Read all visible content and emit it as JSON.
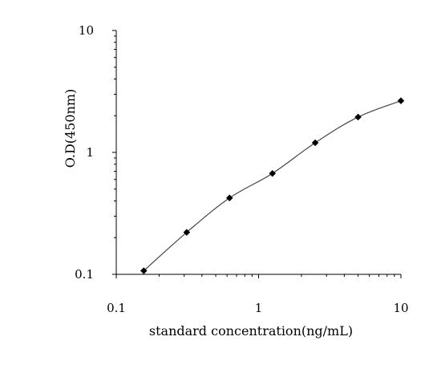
{
  "chart_data": {
    "type": "line",
    "title": "",
    "xlabel": "standard concentration(ng/mL)",
    "ylabel": "O.D(450nm)",
    "xscale": "log",
    "yscale": "log",
    "xlim": [
      0.1,
      10
    ],
    "ylim": [
      0.1,
      10
    ],
    "x_ticks": [
      "0.1",
      "1",
      "10"
    ],
    "y_ticks": [
      "0.1",
      "1",
      "10"
    ],
    "grid": false,
    "legend": "none",
    "series": [
      {
        "x": [
          0.156,
          0.3125,
          0.625,
          1.25,
          2.5,
          5,
          10
        ],
        "y": [
          0.107,
          0.221,
          0.423,
          0.672,
          1.2,
          1.95,
          2.65
        ],
        "marker": "diamond",
        "color": "#000000"
      }
    ]
  }
}
